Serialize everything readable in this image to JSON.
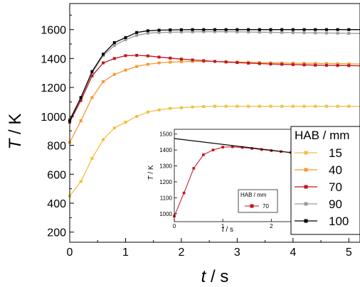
{
  "chart_data": [
    {
      "type": "line",
      "xlabel_var": "t",
      "xlabel_unit": " / s",
      "ylabel_var": "T",
      "ylabel_unit": " / K",
      "xlim": [
        0,
        5.2
      ],
      "ylim": [
        130,
        1780
      ],
      "xticks": [
        0,
        1,
        2,
        3,
        4,
        5
      ],
      "yticks": [
        200,
        400,
        600,
        800,
        1000,
        1200,
        1400,
        1600
      ],
      "legend_title": "HAB / mm",
      "legend_position": "right",
      "x": [
        0,
        0.2,
        0.4,
        0.6,
        0.8,
        1.0,
        1.2,
        1.4,
        1.6,
        1.8,
        2.0,
        2.2,
        2.4,
        2.6,
        2.8,
        3.0,
        3.2,
        3.4,
        3.6,
        3.8,
        4.0,
        4.2,
        4.4,
        4.6,
        4.8,
        5.0,
        5.2
      ],
      "series": [
        {
          "name": "15",
          "color": "#f0c040",
          "marker": "square",
          "values": [
            450,
            550,
            710,
            840,
            920,
            960,
            1000,
            1030,
            1045,
            1055,
            1060,
            1065,
            1068,
            1070,
            1070,
            1070,
            1070,
            1070,
            1070,
            1070,
            1070,
            1070,
            1070,
            1070,
            1070,
            1070,
            1070
          ]
        },
        {
          "name": "40",
          "color": "#f59a30",
          "marker": "square",
          "values": [
            820,
            970,
            1130,
            1240,
            1290,
            1320,
            1345,
            1360,
            1370,
            1375,
            1378,
            1380,
            1380,
            1380,
            1378,
            1376,
            1374,
            1372,
            1370,
            1369,
            1368,
            1367,
            1366,
            1365,
            1364,
            1363,
            1362
          ]
        },
        {
          "name": "70",
          "color": "#c0141e",
          "marker": "square",
          "values": [
            960,
            1110,
            1280,
            1370,
            1400,
            1420,
            1422,
            1418,
            1410,
            1403,
            1396,
            1390,
            1385,
            1380,
            1376,
            1372,
            1368,
            1365,
            1362,
            1360,
            1358,
            1356,
            1354,
            1353,
            1352,
            1351,
            1350
          ]
        },
        {
          "name": "90",
          "color": "#9a9a9a",
          "marker": "square",
          "values": [
            980,
            1130,
            1300,
            1420,
            1490,
            1530,
            1560,
            1575,
            1580,
            1582,
            1583,
            1584,
            1585,
            1585,
            1585,
            1584,
            1583,
            1582,
            1581,
            1580,
            1579,
            1578,
            1577,
            1576,
            1575,
            1574,
            1573
          ]
        },
        {
          "name": "100",
          "color": "#000000",
          "marker": "square",
          "values": [
            970,
            1130,
            1310,
            1430,
            1510,
            1545,
            1580,
            1592,
            1596,
            1598,
            1599,
            1600,
            1600,
            1600,
            1600,
            1600,
            1600,
            1600,
            1600,
            1600,
            1600,
            1600,
            1600,
            1600,
            1600,
            1600,
            1600
          ]
        }
      ]
    },
    {
      "type": "line",
      "xlabel_var": "t",
      "xlabel_unit": " / s",
      "ylabel_var": "T",
      "ylabel_unit": " / K",
      "xlim": [
        0,
        2.45
      ],
      "ylim": [
        950,
        1530
      ],
      "xticks": [
        0,
        1,
        2
      ],
      "yticks": [
        1000,
        1100,
        1200,
        1300,
        1400,
        1500
      ],
      "legend_title": "HAB / mm",
      "legend_position": "bottom-right",
      "series": [
        {
          "name": "70",
          "color": "#c0141e",
          "marker": "square",
          "x": [
            0,
            0.2,
            0.4,
            0.6,
            0.8,
            1.0,
            1.2,
            1.4,
            1.6,
            1.8,
            2.0,
            2.2,
            2.4
          ],
          "values": [
            985,
            1130,
            1285,
            1370,
            1400,
            1418,
            1420,
            1416,
            1410,
            1403,
            1396,
            1390,
            1384
          ]
        },
        {
          "name": "",
          "color": "#000000",
          "marker": "none",
          "x": [
            0,
            2.45
          ],
          "values": [
            1472,
            1382
          ]
        }
      ]
    }
  ]
}
